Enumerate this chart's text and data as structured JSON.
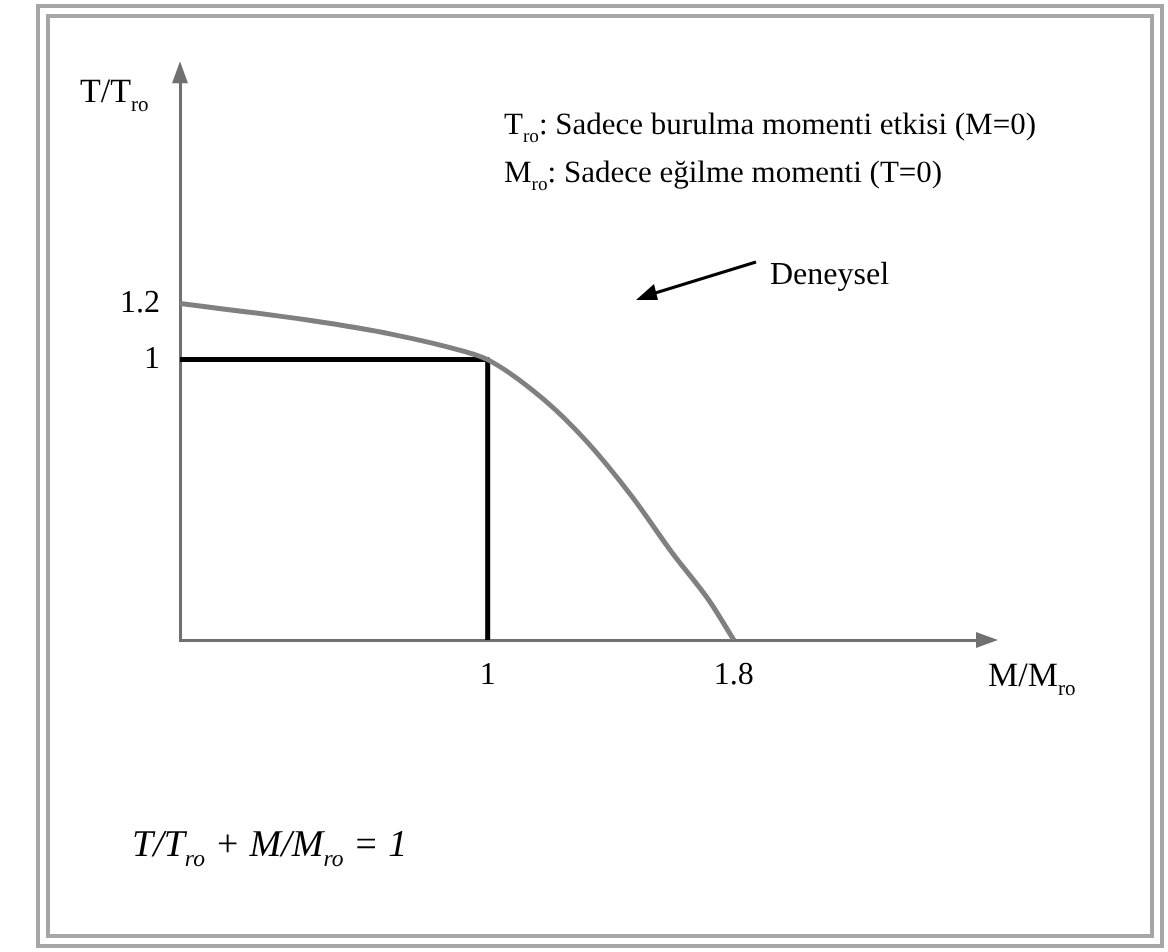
{
  "chart_data": {
    "type": "line",
    "ylabel": "T/T$_{ro}$",
    "xlabel": "M/M$_{ro}$",
    "series": [
      {
        "name": "Deneysel",
        "color": "#808080",
        "x": [
          0,
          0.42,
          0.69,
          0.92,
          1,
          1.18,
          1.32,
          1.47,
          1.6,
          1.72,
          1.8
        ],
        "values": [
          1.2,
          1.14,
          1.09,
          1.03,
          1,
          0.86,
          0.71,
          0.51,
          0.31,
          0.14,
          0
        ]
      },
      {
        "color": "#000000",
        "x": [
          0,
          1,
          1
        ],
        "values": [
          1,
          1,
          0
        ]
      }
    ],
    "xlim": [
      0,
      2.6
    ],
    "ylim": [
      0,
      2
    ],
    "xticks": [
      1,
      1.8
    ],
    "yticks": [
      1,
      1.2
    ],
    "grid": false,
    "marker": "none",
    "line_style": "solid",
    "annotations": [
      "T$_{ro}$: Sadece burulma momenti etkisi (M=0)",
      "M$_{ro}$: Sadece eğilme momenti (T=0)",
      "T/T$_{ro}$ + M/M$_{ro}$ = 1"
    ]
  }
}
